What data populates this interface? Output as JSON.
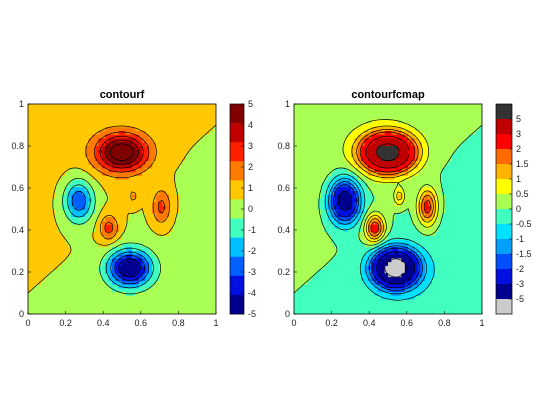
{
  "chart_data": [
    {
      "type": "contour",
      "title": "contourf",
      "xlim": [
        0,
        1
      ],
      "ylim": [
        0,
        1
      ],
      "x_ticks": [
        "0",
        "0.2",
        "0.4",
        "0.6",
        "0.8",
        "1"
      ],
      "y_ticks": [
        "0",
        "0.2",
        "0.4",
        "0.6",
        "0.8",
        "1"
      ],
      "peaks": [
        {
          "x": 0.5,
          "y": 0.77,
          "amplitude": 6.0,
          "sx": 0.095,
          "sy": 0.062
        },
        {
          "x": 0.71,
          "y": 0.51,
          "amplitude": 2.4,
          "sx": 0.035,
          "sy": 0.06
        },
        {
          "x": 0.43,
          "y": 0.41,
          "amplitude": 2.5,
          "sx": 0.035,
          "sy": 0.045
        },
        {
          "x": 0.56,
          "y": 0.56,
          "amplitude": 1.3,
          "sx": 0.02,
          "sy": 0.03
        },
        {
          "x": 0.27,
          "y": 0.54,
          "amplitude": -3.9,
          "sx": 0.055,
          "sy": 0.07
        },
        {
          "x": 0.54,
          "y": 0.22,
          "amplitude": -6.3,
          "sx": 0.08,
          "sy": 0.06
        }
      ],
      "levels": [
        -5,
        -4,
        -3,
        -2,
        -1,
        0,
        1,
        2,
        3,
        4,
        5
      ],
      "colorbar": {
        "ticks": [
          "5",
          "4",
          "3",
          "2",
          "1",
          "0",
          "-1",
          "-2",
          "-3",
          "-4",
          "-5"
        ],
        "colors": [
          "#7f0000",
          "#c00000",
          "#ff2000",
          "#ff7a00",
          "#ffc800",
          "#aaff55",
          "#40ffbf",
          "#00c0ff",
          "#0060ff",
          "#0010e0",
          "#00008f"
        ]
      }
    },
    {
      "type": "contour",
      "title": "contourfcmap",
      "xlim": [
        0,
        1
      ],
      "ylim": [
        0,
        1
      ],
      "x_ticks": [
        "0",
        "0.2",
        "0.4",
        "0.6",
        "0.8",
        "1"
      ],
      "y_ticks": [
        "0",
        "0.2",
        "0.4",
        "0.6",
        "0.8",
        "1"
      ],
      "levels": [
        -5,
        -3,
        -2,
        -1.5,
        -1,
        -0.5,
        0,
        0.5,
        1,
        1.5,
        2,
        3,
        5
      ],
      "colorbar": {
        "ticks": [
          "5",
          "3",
          "2",
          "1.5",
          "1",
          "0.5",
          "0",
          "-0.5",
          "-1",
          "-1.5",
          "-2",
          "-3",
          "-5"
        ],
        "colors": [
          "#333333",
          "#c00000",
          "#ff0000",
          "#ff6a00",
          "#ffb400",
          "#ffff00",
          "#aaff55",
          "#40ffbf",
          "#00e0ff",
          "#00a0ff",
          "#0050ff",
          "#0010e0",
          "#00008f",
          "#cccccc"
        ]
      }
    }
  ]
}
